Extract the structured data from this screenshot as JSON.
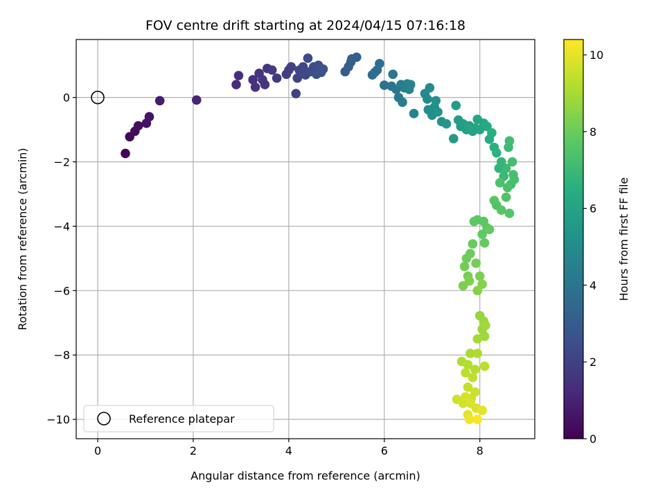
{
  "chart_data": {
    "type": "scatter",
    "title": "FOV centre drift starting at 2024/04/15 07:16:18",
    "xlabel": "Angular distance from reference (arcmin)",
    "ylabel": "Rotation from reference (arcmin)",
    "xlim": [
      -0.45,
      9.15
    ],
    "ylim": [
      -10.6,
      1.8
    ],
    "xticks": [
      0,
      2,
      4,
      6,
      8
    ],
    "yticks": [
      0,
      -2,
      -4,
      -6,
      -8,
      -10
    ],
    "grid": true,
    "legend": {
      "placement": "lower-left",
      "entries": [
        {
          "label": "Reference platepar",
          "marker": "open-circle"
        }
      ]
    },
    "reference_point": {
      "x": 0,
      "y": 0
    },
    "colorbar": {
      "label": "Hours from first FF file",
      "min": 0,
      "max": 10.4,
      "ticks": [
        0,
        2,
        4,
        6,
        8,
        10
      ],
      "colormap": "viridis"
    },
    "colors": {
      "grid": "#b0b0b0",
      "axes": "#000000",
      "reference_marker": "#000000"
    },
    "points": [
      {
        "x": 0.58,
        "y": -1.74,
        "t": 0.05
      },
      {
        "x": 0.67,
        "y": -1.22,
        "t": 0.2
      },
      {
        "x": 0.78,
        "y": -1.05,
        "t": 0.3
      },
      {
        "x": 0.85,
        "y": -0.88,
        "t": 0.4
      },
      {
        "x": 1.02,
        "y": -0.8,
        "t": 0.5
      },
      {
        "x": 1.08,
        "y": -0.6,
        "t": 0.6
      },
      {
        "x": 1.3,
        "y": -0.1,
        "t": 0.8
      },
      {
        "x": 2.07,
        "y": -0.08,
        "t": 1.05
      },
      {
        "x": 2.9,
        "y": 0.4,
        "t": 1.3
      },
      {
        "x": 2.95,
        "y": 0.68,
        "t": 1.35
      },
      {
        "x": 3.25,
        "y": 0.55,
        "t": 1.45
      },
      {
        "x": 3.3,
        "y": 0.32,
        "t": 1.5
      },
      {
        "x": 3.38,
        "y": 0.75,
        "t": 1.55
      },
      {
        "x": 3.45,
        "y": 0.55,
        "t": 1.6
      },
      {
        "x": 3.5,
        "y": 0.4,
        "t": 1.65
      },
      {
        "x": 3.55,
        "y": 0.9,
        "t": 1.7
      },
      {
        "x": 3.65,
        "y": 0.85,
        "t": 1.75
      },
      {
        "x": 3.75,
        "y": 0.6,
        "t": 1.8
      },
      {
        "x": 3.95,
        "y": 0.72,
        "t": 1.9
      },
      {
        "x": 4.0,
        "y": 0.85,
        "t": 1.95
      },
      {
        "x": 4.05,
        "y": 0.95,
        "t": 2.0
      },
      {
        "x": 4.15,
        "y": 0.12,
        "t": 2.05
      },
      {
        "x": 4.18,
        "y": 0.6,
        "t": 2.1
      },
      {
        "x": 4.22,
        "y": 0.85,
        "t": 2.15
      },
      {
        "x": 4.3,
        "y": 0.95,
        "t": 2.2
      },
      {
        "x": 4.35,
        "y": 0.7,
        "t": 2.25
      },
      {
        "x": 4.4,
        "y": 1.22,
        "t": 2.3
      },
      {
        "x": 4.45,
        "y": 0.8,
        "t": 2.35
      },
      {
        "x": 4.52,
        "y": 0.95,
        "t": 2.4
      },
      {
        "x": 4.58,
        "y": 0.72,
        "t": 2.45
      },
      {
        "x": 4.62,
        "y": 1.0,
        "t": 2.5
      },
      {
        "x": 4.68,
        "y": 0.78,
        "t": 2.55
      },
      {
        "x": 4.72,
        "y": 0.88,
        "t": 2.6
      },
      {
        "x": 5.18,
        "y": 0.8,
        "t": 3.0
      },
      {
        "x": 5.25,
        "y": 0.95,
        "t": 3.05
      },
      {
        "x": 5.3,
        "y": 1.1,
        "t": 3.1
      },
      {
        "x": 5.32,
        "y": 1.2,
        "t": 3.15
      },
      {
        "x": 5.42,
        "y": 1.25,
        "t": 3.2
      },
      {
        "x": 5.75,
        "y": 0.7,
        "t": 3.6
      },
      {
        "x": 5.8,
        "y": 0.78,
        "t": 3.65
      },
      {
        "x": 5.85,
        "y": 0.85,
        "t": 3.7
      },
      {
        "x": 5.9,
        "y": 1.05,
        "t": 3.75
      },
      {
        "x": 6.0,
        "y": 0.38,
        "t": 3.9
      },
      {
        "x": 6.15,
        "y": 0.35,
        "t": 4.0
      },
      {
        "x": 6.18,
        "y": 0.72,
        "t": 4.05
      },
      {
        "x": 6.25,
        "y": 0.25,
        "t": 4.1
      },
      {
        "x": 6.3,
        "y": 0.0,
        "t": 4.2
      },
      {
        "x": 6.35,
        "y": 0.4,
        "t": 4.3
      },
      {
        "x": 6.38,
        "y": -0.15,
        "t": 4.35
      },
      {
        "x": 6.42,
        "y": 0.3,
        "t": 4.4
      },
      {
        "x": 6.48,
        "y": 0.42,
        "t": 4.5
      },
      {
        "x": 6.52,
        "y": 0.25,
        "t": 4.55
      },
      {
        "x": 6.55,
        "y": 0.4,
        "t": 4.6
      },
      {
        "x": 6.62,
        "y": -0.5,
        "t": 4.7
      },
      {
        "x": 6.85,
        "y": 0.12,
        "t": 4.9
      },
      {
        "x": 6.9,
        "y": -0.05,
        "t": 4.95
      },
      {
        "x": 6.95,
        "y": 0.3,
        "t": 5.0
      },
      {
        "x": 6.92,
        "y": -0.38,
        "t": 5.05
      },
      {
        "x": 7.0,
        "y": -0.55,
        "t": 5.1
      },
      {
        "x": 7.05,
        "y": -0.3,
        "t": 5.15
      },
      {
        "x": 7.08,
        "y": -0.1,
        "t": 5.2
      },
      {
        "x": 7.12,
        "y": -0.45,
        "t": 5.25
      },
      {
        "x": 7.2,
        "y": -0.75,
        "t": 5.35
      },
      {
        "x": 7.3,
        "y": -0.82,
        "t": 5.45
      },
      {
        "x": 7.45,
        "y": -1.28,
        "t": 5.6
      },
      {
        "x": 7.5,
        "y": -0.25,
        "t": 5.65
      },
      {
        "x": 7.55,
        "y": -0.7,
        "t": 5.7
      },
      {
        "x": 7.6,
        "y": -0.9,
        "t": 5.75
      },
      {
        "x": 7.65,
        "y": -0.82,
        "t": 5.8
      },
      {
        "x": 7.72,
        "y": -1.0,
        "t": 5.85
      },
      {
        "x": 7.78,
        "y": -0.88,
        "t": 5.9
      },
      {
        "x": 7.85,
        "y": -1.05,
        "t": 5.95
      },
      {
        "x": 7.9,
        "y": -0.95,
        "t": 6.0
      },
      {
        "x": 7.95,
        "y": -0.68,
        "t": 6.05
      },
      {
        "x": 8.0,
        "y": -1.0,
        "t": 6.1
      },
      {
        "x": 8.08,
        "y": -0.8,
        "t": 6.2
      },
      {
        "x": 8.15,
        "y": -0.9,
        "t": 6.3
      },
      {
        "x": 8.2,
        "y": -1.3,
        "t": 6.4
      },
      {
        "x": 8.25,
        "y": -1.1,
        "t": 6.5
      },
      {
        "x": 8.3,
        "y": -1.55,
        "t": 6.6
      },
      {
        "x": 8.35,
        "y": -1.72,
        "t": 6.65
      },
      {
        "x": 8.4,
        "y": -2.2,
        "t": 6.75
      },
      {
        "x": 8.45,
        "y": -2.0,
        "t": 6.85
      },
      {
        "x": 8.5,
        "y": -2.45,
        "t": 6.95
      },
      {
        "x": 8.55,
        "y": -2.2,
        "t": 7.0
      },
      {
        "x": 8.6,
        "y": -1.55,
        "t": 7.05
      },
      {
        "x": 8.62,
        "y": -1.35,
        "t": 7.1
      },
      {
        "x": 8.65,
        "y": -2.7,
        "t": 7.15
      },
      {
        "x": 8.68,
        "y": -2.0,
        "t": 7.2
      },
      {
        "x": 8.7,
        "y": -2.4,
        "t": 7.25
      },
      {
        "x": 8.72,
        "y": -2.55,
        "t": 7.3
      },
      {
        "x": 8.58,
        "y": -2.8,
        "t": 7.35
      },
      {
        "x": 8.42,
        "y": -2.65,
        "t": 7.4
      },
      {
        "x": 8.35,
        "y": -3.35,
        "t": 7.45
      },
      {
        "x": 8.55,
        "y": -3.1,
        "t": 7.5
      },
      {
        "x": 8.62,
        "y": -3.6,
        "t": 7.55
      },
      {
        "x": 8.3,
        "y": -3.2,
        "t": 7.6
      },
      {
        "x": 8.45,
        "y": -3.5,
        "t": 7.62
      },
      {
        "x": 8.15,
        "y": -4.05,
        "t": 7.65
      },
      {
        "x": 8.08,
        "y": -3.85,
        "t": 7.7
      },
      {
        "x": 7.95,
        "y": -3.8,
        "t": 7.75
      },
      {
        "x": 7.88,
        "y": -3.85,
        "t": 7.78
      },
      {
        "x": 8.05,
        "y": -4.25,
        "t": 7.8
      },
      {
        "x": 8.2,
        "y": -4.1,
        "t": 7.85
      },
      {
        "x": 8.1,
        "y": -4.52,
        "t": 7.9
      },
      {
        "x": 7.85,
        "y": -4.55,
        "t": 7.95
      },
      {
        "x": 7.8,
        "y": -4.85,
        "t": 8.0
      },
      {
        "x": 7.72,
        "y": -5.0,
        "t": 8.05
      },
      {
        "x": 7.68,
        "y": -5.25,
        "t": 8.1
      },
      {
        "x": 7.92,
        "y": -5.15,
        "t": 8.15
      },
      {
        "x": 7.75,
        "y": -5.55,
        "t": 8.2
      },
      {
        "x": 8.0,
        "y": -5.55,
        "t": 8.25
      },
      {
        "x": 7.65,
        "y": -5.85,
        "t": 8.3
      },
      {
        "x": 7.78,
        "y": -5.7,
        "t": 8.35
      },
      {
        "x": 8.05,
        "y": -5.8,
        "t": 8.4
      },
      {
        "x": 7.95,
        "y": -6.0,
        "t": 8.45
      },
      {
        "x": 8.0,
        "y": -6.78,
        "t": 8.7
      },
      {
        "x": 8.08,
        "y": -6.95,
        "t": 8.75
      },
      {
        "x": 8.05,
        "y": -7.2,
        "t": 8.8
      },
      {
        "x": 8.1,
        "y": -7.42,
        "t": 8.85
      },
      {
        "x": 8.12,
        "y": -7.08,
        "t": 8.9
      },
      {
        "x": 7.95,
        "y": -7.5,
        "t": 8.95
      },
      {
        "x": 7.8,
        "y": -7.95,
        "t": 9.05
      },
      {
        "x": 7.95,
        "y": -7.95,
        "t": 9.1
      },
      {
        "x": 7.62,
        "y": -8.2,
        "t": 9.15
      },
      {
        "x": 7.75,
        "y": -8.3,
        "t": 9.2
      },
      {
        "x": 7.9,
        "y": -8.45,
        "t": 9.25
      },
      {
        "x": 8.1,
        "y": -8.35,
        "t": 9.3
      },
      {
        "x": 7.7,
        "y": -8.55,
        "t": 9.35
      },
      {
        "x": 7.85,
        "y": -8.7,
        "t": 9.4
      },
      {
        "x": 7.75,
        "y": -9.0,
        "t": 9.5
      },
      {
        "x": 7.9,
        "y": -9.15,
        "t": 9.55
      },
      {
        "x": 7.82,
        "y": -9.35,
        "t": 9.6
      },
      {
        "x": 7.52,
        "y": -9.38,
        "t": 9.65
      },
      {
        "x": 7.65,
        "y": -9.5,
        "t": 9.7
      },
      {
        "x": 7.7,
        "y": -9.3,
        "t": 9.75
      },
      {
        "x": 7.8,
        "y": -9.5,
        "t": 9.8
      },
      {
        "x": 7.92,
        "y": -9.65,
        "t": 9.85
      },
      {
        "x": 7.75,
        "y": -9.85,
        "t": 9.95
      },
      {
        "x": 8.05,
        "y": -9.72,
        "t": 10.0
      },
      {
        "x": 7.78,
        "y": -10.0,
        "t": 10.15
      },
      {
        "x": 7.95,
        "y": -10.0,
        "t": 10.3
      }
    ]
  }
}
